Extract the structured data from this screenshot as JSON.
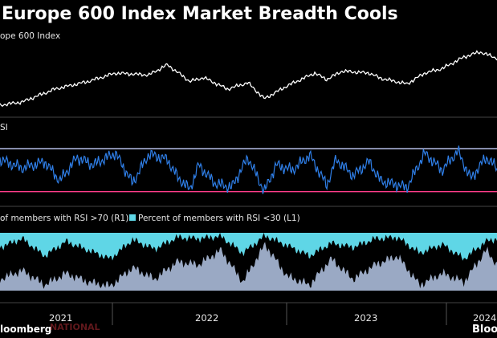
{
  "title": "Europe 600 Index Market Breadth Cools",
  "panels": {
    "index_label": "ope 600 Index",
    "rsi_label": "SI",
    "breadth_legend": {
      "above70": "of members with RSI >70 (R1)",
      "below30": "Percent of members with RSI <30 (L1)"
    }
  },
  "brand": {
    "left": "loomberg",
    "right": "Bloo"
  },
  "watermark": "NATIONAL",
  "colors": {
    "background": "#000000",
    "index_line": "#ffffff",
    "rsi_line": "#2f7fe8",
    "rsi_upper_band": "#c8d2ff",
    "rsi_lower_band": "#ff3d8a",
    "above70_fill": "#5fd6e6",
    "below30_fill": "#9aa9c4",
    "separator": "#444444"
  },
  "chart_data": [
    {
      "type": "line",
      "panel": "index",
      "series": [
        {
          "name": "ope 600 Index",
          "x": [
            "2020-10-01",
            "2020-12-01",
            "2021-03-01",
            "2021-06-01",
            "2021-08-15",
            "2021-11-15",
            "2022-01-05",
            "2022-03-08",
            "2022-04-15",
            "2022-06-20",
            "2022-08-15",
            "2022-09-29",
            "2022-12-01",
            "2023-02-15",
            "2023-03-20",
            "2023-05-01",
            "2023-07-15",
            "2023-08-15",
            "2023-10-27",
            "2023-12-15",
            "2024-02-01",
            "2024-04-01",
            "2024-05-15",
            "2024-07-01"
          ],
          "values": [
            0.05,
            0.1,
            0.3,
            0.42,
            0.55,
            0.52,
            0.68,
            0.42,
            0.48,
            0.3,
            0.4,
            0.15,
            0.35,
            0.55,
            0.45,
            0.58,
            0.55,
            0.47,
            0.38,
            0.55,
            0.62,
            0.8,
            0.88,
            0.78
          ]
        }
      ]
    },
    {
      "type": "line",
      "panel": "rsi",
      "series": [
        {
          "name": "SI",
          "x": [
            "2020-10-01",
            "2020-12-01",
            "2021-02-01",
            "2021-03-15",
            "2021-05-01",
            "2021-06-15",
            "2021-08-15",
            "2021-10-01",
            "2021-11-15",
            "2022-01-05",
            "2022-02-01",
            "2022-03-08",
            "2022-04-01",
            "2022-05-15",
            "2022-07-01",
            "2022-08-15",
            "2022-09-29",
            "2022-11-01",
            "2022-12-15",
            "2023-02-01",
            "2023-03-20",
            "2023-04-15",
            "2023-06-01",
            "2023-07-15",
            "2023-08-15",
            "2023-10-27",
            "2023-12-15",
            "2024-02-01",
            "2024-03-15",
            "2024-04-20",
            "2024-06-01",
            "2024-07-01"
          ],
          "values": [
            60,
            52,
            58,
            40,
            62,
            55,
            66,
            38,
            65,
            60,
            44,
            32,
            55,
            38,
            34,
            62,
            30,
            55,
            50,
            64,
            36,
            60,
            45,
            58,
            40,
            34,
            66,
            50,
            68,
            42,
            62,
            52
          ],
          "upper_band": 70,
          "lower_band": 30
        }
      ]
    },
    {
      "type": "area",
      "panel": "breadth",
      "series": [
        {
          "name": "of members with RSI >70 (R1)",
          "x": [
            "2020-10-01",
            "2020-12-01",
            "2021-02-01",
            "2021-04-01",
            "2021-06-01",
            "2021-08-01",
            "2021-10-01",
            "2021-12-01",
            "2022-02-01",
            "2022-04-01",
            "2022-06-01",
            "2022-08-01",
            "2022-10-01",
            "2022-12-01",
            "2023-02-01",
            "2023-04-01",
            "2023-06-01",
            "2023-08-01",
            "2023-10-01",
            "2023-12-01",
            "2024-02-01",
            "2024-04-01",
            "2024-06-01",
            "2024-07-01"
          ],
          "values": [
            25,
            10,
            40,
            15,
            30,
            45,
            12,
            28,
            8,
            10,
            6,
            35,
            5,
            22,
            40,
            18,
            25,
            10,
            8,
            35,
            20,
            45,
            15,
            10
          ]
        },
        {
          "name": "Percent of members with RSI <30 (L1)",
          "x": [
            "2020-10-01",
            "2020-12-01",
            "2021-02-01",
            "2021-04-01",
            "2021-06-01",
            "2021-08-01",
            "2021-10-01",
            "2021-12-01",
            "2022-02-01",
            "2022-04-01",
            "2022-06-01",
            "2022-08-01",
            "2022-10-01",
            "2022-12-01",
            "2023-02-01",
            "2023-04-01",
            "2023-06-01",
            "2023-08-01",
            "2023-10-01",
            "2023-12-01",
            "2024-02-01",
            "2024-04-01",
            "2024-06-01",
            "2024-07-01"
          ],
          "values": [
            20,
            35,
            10,
            30,
            15,
            8,
            40,
            20,
            50,
            45,
            70,
            15,
            80,
            25,
            10,
            55,
            20,
            45,
            60,
            10,
            30,
            15,
            70,
            45
          ]
        }
      ]
    }
  ],
  "x_axis": {
    "ticks": [
      "2021",
      "2022",
      "2023",
      "2024"
    ]
  }
}
